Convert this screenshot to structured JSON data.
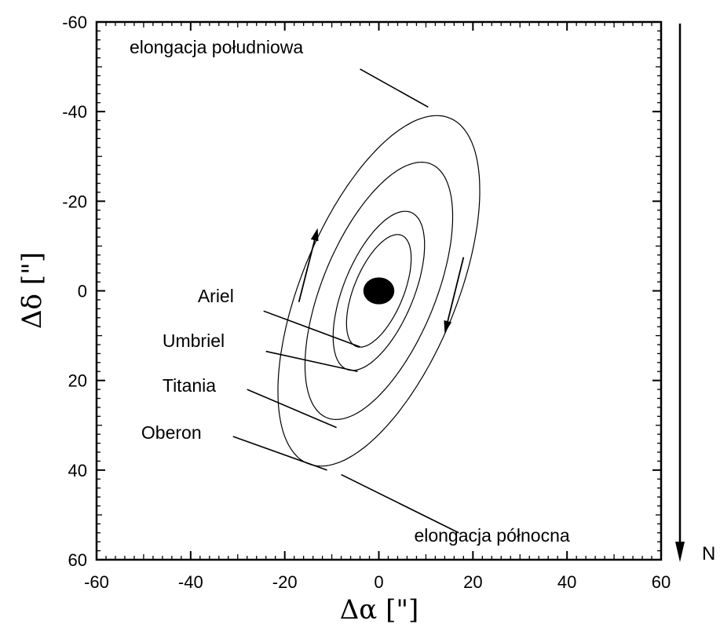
{
  "chart_data": {
    "type": "scatter",
    "xlabel": "Δα [\"]",
    "ylabel": "Δδ [\"]",
    "xlim": [
      -60,
      60
    ],
    "ylim": [
      -60,
      60
    ],
    "y_inverted": true,
    "grid": false,
    "x_ticks": [
      -60,
      -40,
      -20,
      0,
      20,
      40,
      60
    ],
    "y_ticks": [
      -60,
      -40,
      -20,
      0,
      20,
      40,
      60
    ],
    "center_body": {
      "x": 0,
      "y": 0,
      "rx": 3.3,
      "ry": 3.0
    },
    "orbits": [
      {
        "name": "Ariel",
        "center": [
          0,
          0
        ],
        "semi_major": 13.3,
        "semi_minor": 5.3,
        "tilt_deg": 69
      },
      {
        "name": "Umbriel",
        "center": [
          0,
          0
        ],
        "semi_major": 18.8,
        "semi_minor": 7.5,
        "tilt_deg": 69
      },
      {
        "name": "Titania",
        "center": [
          0,
          0
        ],
        "semi_major": 30.4,
        "semi_minor": 12.1,
        "tilt_deg": 69
      },
      {
        "name": "Oberon",
        "center": [
          0,
          0
        ],
        "semi_major": 41.4,
        "semi_minor": 16.6,
        "tilt_deg": 69
      }
    ],
    "annotations": [
      {
        "text": "elongacja południowa",
        "x": -53,
        "y": -53,
        "pointer_from": [
          -4,
          -49.5
        ],
        "pointer_to": [
          10.5,
          -41
        ]
      },
      {
        "text": "elongacja północna",
        "x": 7.5,
        "y": 56,
        "pointer_from": [
          17,
          54
        ],
        "pointer_to": [
          -8,
          41
        ]
      },
      {
        "text": "Ariel",
        "x": -38.5,
        "y": 2.5,
        "pointer_from": [
          -24.5,
          4.5
        ],
        "pointer_to": [
          -4,
          12.5
        ]
      },
      {
        "text": "Umbriel",
        "x": -46,
        "y": 12.5,
        "pointer_from": [
          -24,
          13.5
        ],
        "pointer_to": [
          -4.5,
          18
        ]
      },
      {
        "text": "Titania",
        "x": -46,
        "y": 22.5,
        "pointer_from": [
          -28,
          22
        ],
        "pointer_to": [
          -9,
          30.5
        ]
      },
      {
        "text": "Oberon",
        "x": -50.5,
        "y": 33,
        "pointer_from": [
          -31,
          32.5
        ],
        "pointer_to": [
          -11,
          40
        ]
      }
    ],
    "rotation_arrows": [
      {
        "from": [
          -17,
          2.5
        ],
        "to": [
          -13,
          -14
        ]
      },
      {
        "from": [
          18,
          -7.5
        ],
        "to": [
          14,
          9.5
        ]
      }
    ],
    "north_indicator": "N"
  }
}
